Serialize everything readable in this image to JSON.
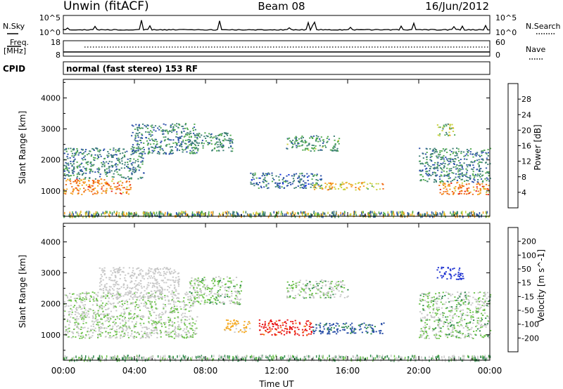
{
  "header": {
    "station": "Unwin (fitACF)",
    "beam": "Beam 08",
    "date": "16/Jun/2012"
  },
  "strips": {
    "nsky_label": "N.Sky",
    "nsky_ticks": [
      "10^5",
      "10^0"
    ],
    "nsearch_label": "N.Search",
    "nsearch_ticks": [
      "10^5",
      "10^0"
    ],
    "freq_label": "Freq.",
    "freq_unit": "[MHz]",
    "freq_ticks": [
      "18",
      "8"
    ],
    "nave_label": "Nave",
    "nave_ticks": [
      "60",
      "0"
    ],
    "cpid_label": "CPID",
    "cpid_text": "normal (fast stereo) 153 RF"
  },
  "chart_data": [
    {
      "type": "heatmap",
      "name": "power",
      "ylabel": "Slant Range [km]",
      "yticks": [
        "1000",
        "2000",
        "3000",
        "4000"
      ],
      "ylim": [
        180,
        4600
      ],
      "xlim": [
        0,
        24
      ],
      "colorbar": {
        "label": "Power [dB]",
        "ticks": [
          "4",
          "8",
          "12",
          "16",
          "20",
          "24",
          "28"
        ],
        "range": [
          0,
          32
        ],
        "colors": [
          "#0a2bdc",
          "#2a4fa8",
          "#3c7f74",
          "#4ea84e",
          "#c8d03c",
          "#f5a01e",
          "#f06a12",
          "#e8200e"
        ]
      },
      "regions": [
        {
          "from": 0.0,
          "to": 3.8,
          "range_lo": 900,
          "range_hi": 1400,
          "level": 24
        },
        {
          "from": 0.0,
          "to": 4.5,
          "range_lo": 1400,
          "range_hi": 2400,
          "level": 10
        },
        {
          "from": 3.8,
          "to": 7.5,
          "range_lo": 2200,
          "range_hi": 3200,
          "level": 10
        },
        {
          "from": 7.0,
          "to": 9.5,
          "range_lo": 2300,
          "range_hi": 2900,
          "level": 11
        },
        {
          "from": 10.5,
          "to": 14.5,
          "range_lo": 1100,
          "range_hi": 1600,
          "level": 8
        },
        {
          "from": 14.0,
          "to": 18.0,
          "range_lo": 1050,
          "range_hi": 1300,
          "level": 20
        },
        {
          "from": 12.5,
          "to": 15.5,
          "range_lo": 2300,
          "range_hi": 2800,
          "level": 12
        },
        {
          "from": 21.0,
          "to": 24.0,
          "range_lo": 900,
          "range_hi": 1300,
          "level": 24
        },
        {
          "from": 20.0,
          "to": 24.0,
          "range_lo": 1300,
          "range_hi": 2400,
          "level": 10
        },
        {
          "from": 21.0,
          "to": 22.0,
          "range_lo": 2800,
          "range_hi": 3200,
          "level": 16
        }
      ]
    },
    {
      "type": "heatmap",
      "name": "velocity",
      "ylabel": "Slant Range [km]",
      "yticks": [
        "1000",
        "2000",
        "3000",
        "4000"
      ],
      "ylim": [
        180,
        4600
      ],
      "xlim": [
        0,
        24
      ],
      "xticks": [
        "00:00",
        "04:00",
        "08:00",
        "12:00",
        "16:00",
        "20:00",
        "00:00"
      ],
      "xlabel": "Time UT",
      "colorbar": {
        "label": "Velocity [m s^-1]",
        "ticks": [
          "-200",
          "-100",
          "-50",
          "-15",
          "15",
          "50",
          "100",
          "200"
        ],
        "colors": [
          "#e81010",
          "#f36a10",
          "#f5a81e",
          "#c8c8c8",
          "#c8c8c8",
          "#6cc24a",
          "#2e8a4a",
          "#2a4fa8",
          "#1a2ed0"
        ]
      },
      "regions": [
        {
          "from": 0.0,
          "to": 7.5,
          "range_lo": 900,
          "range_hi": 2400,
          "level": -5
        },
        {
          "from": 2.0,
          "to": 6.5,
          "range_lo": 2200,
          "range_hi": 3200,
          "level": -30
        },
        {
          "from": 7.0,
          "to": 10.0,
          "range_lo": 2000,
          "range_hi": 2900,
          "level": 0
        },
        {
          "from": 9.0,
          "to": 10.5,
          "range_lo": 1100,
          "range_hi": 1500,
          "level": -60
        },
        {
          "from": 11.0,
          "to": 14.0,
          "range_lo": 1000,
          "range_hi": 1500,
          "level": -230
        },
        {
          "from": 14.0,
          "to": 18.0,
          "range_lo": 1050,
          "range_hi": 1400,
          "level": 60
        },
        {
          "from": 12.5,
          "to": 16.0,
          "range_lo": 2200,
          "range_hi": 2800,
          "level": 0
        },
        {
          "from": 20.0,
          "to": 24.0,
          "range_lo": 900,
          "range_hi": 2400,
          "level": 0
        },
        {
          "from": 21.0,
          "to": 22.5,
          "range_lo": 2800,
          "range_hi": 3200,
          "level": 200
        }
      ]
    }
  ]
}
